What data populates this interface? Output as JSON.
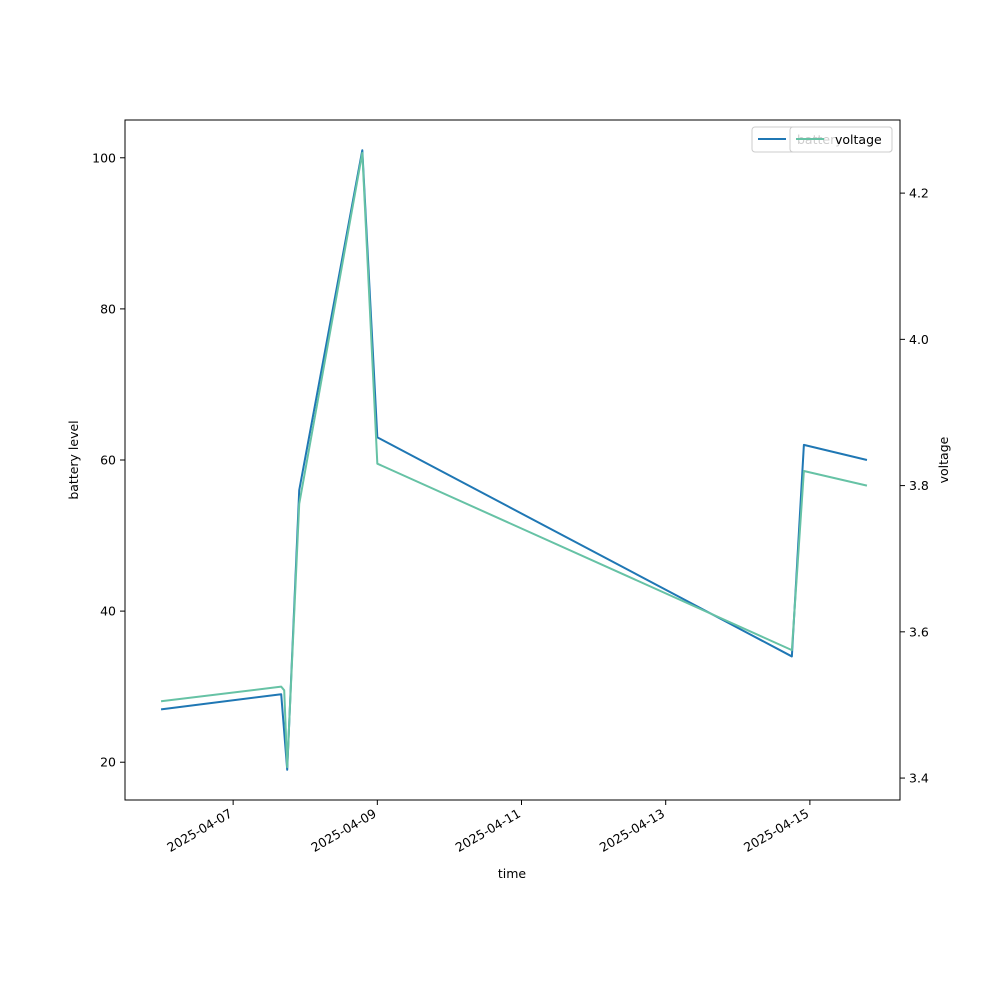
{
  "chart_data": {
    "type": "line",
    "title": "",
    "xlabel": "time",
    "ylabel_left": "battery level",
    "ylabel_right": "voltage",
    "x_axis": {
      "type": "date",
      "range": [
        "2025-04-05T12:00",
        "2025-04-16T06:00"
      ],
      "ticks": [
        "2025-04-07",
        "2025-04-09",
        "2025-04-11",
        "2025-04-13",
        "2025-04-15"
      ]
    },
    "y_left": {
      "range": [
        15,
        105
      ],
      "ticks": [
        "20",
        "40",
        "60",
        "80",
        "100"
      ]
    },
    "y_right": {
      "range": [
        3.37,
        4.3
      ],
      "ticks": [
        "3.4",
        "3.6",
        "3.8",
        "4.0",
        "4.2"
      ]
    },
    "grid": false,
    "legend_placement": "top-right",
    "series": [
      {
        "name": "battery",
        "axis": "left",
        "color": "#1f77b4",
        "points": [
          {
            "x": "2025-04-06T00:00",
            "y": 27
          },
          {
            "x": "2025-04-07T16:00",
            "y": 29
          },
          {
            "x": "2025-04-07T18:00",
            "y": 19
          },
          {
            "x": "2025-04-07T22:00",
            "y": 56
          },
          {
            "x": "2025-04-08T19:00",
            "y": 101
          },
          {
            "x": "2025-04-09T00:00",
            "y": 63
          },
          {
            "x": "2025-04-14T18:00",
            "y": 34
          },
          {
            "x": "2025-04-14T22:00",
            "y": 62
          },
          {
            "x": "2025-04-15T19:00",
            "y": 60
          }
        ]
      },
      {
        "name": "voltage",
        "axis": "right",
        "color": "#66c2a5",
        "points": [
          {
            "x": "2025-04-06T00:00",
            "y": 3.505
          },
          {
            "x": "2025-04-07T16:00",
            "y": 3.525
          },
          {
            "x": "2025-04-07T17:00",
            "y": 3.52
          },
          {
            "x": "2025-04-07T18:00",
            "y": 3.415
          },
          {
            "x": "2025-04-07T22:00",
            "y": 3.775
          },
          {
            "x": "2025-04-08T19:00",
            "y": 4.255
          },
          {
            "x": "2025-04-09T00:00",
            "y": 3.83
          },
          {
            "x": "2025-04-14T18:00",
            "y": 3.575
          },
          {
            "x": "2025-04-14T22:00",
            "y": 3.82
          },
          {
            "x": "2025-04-15T19:00",
            "y": 3.8
          }
        ]
      }
    ]
  }
}
